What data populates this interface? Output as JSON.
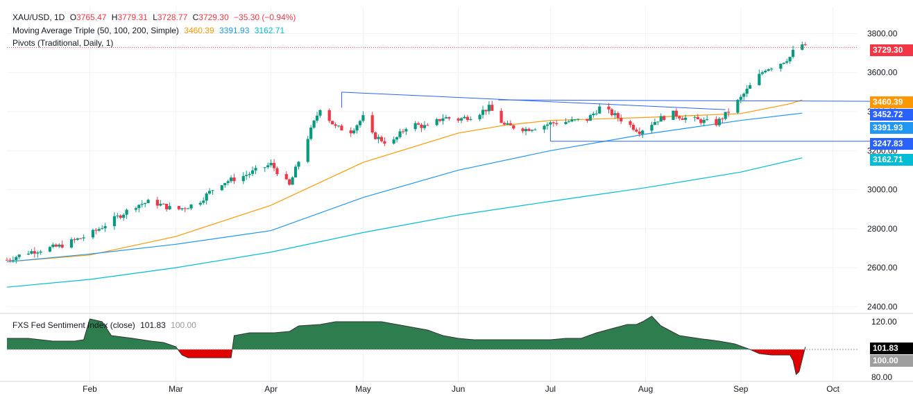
{
  "header": {
    "symbol": "XAU/USD, 1D",
    "open_label": "O",
    "open": "3765.47",
    "high_label": "H",
    "high": "3779.31",
    "low_label": "L",
    "low": "3728.77",
    "close_label": "C",
    "close": "3729.30",
    "change": "−35.30 (−0.94%)",
    "ma_label": "Moving Average Triple (50, 100, 200, Simple)",
    "ma50": "3460.39",
    "ma100": "3391.93",
    "ma200": "3162.71",
    "pivots_label": "Pivots (Traditional, Daily, 1)",
    "indicator_label": "FXS Fed Sentiment Index (close)",
    "indicator_value": "101.83",
    "indicator_baseline": "100.00"
  },
  "price_tags": {
    "last": "3729.30",
    "ma50": "3460.39",
    "pivot": "3452.72",
    "ma100": "3391.93",
    "pivot_low": "3247.83",
    "ma200": "3162.71"
  },
  "indicator_tags": {
    "value": "101.83",
    "baseline": "100.00"
  },
  "colors": {
    "up": "#089981",
    "down": "#f23645",
    "ma50": "#ff9800",
    "ma100": "#2196f3",
    "ma200": "#00bcd4",
    "trend": "#2962ff",
    "sentiment_pos": "#2e7d4f",
    "sentiment_neg": "#e00000"
  },
  "chart_data": {
    "type": "candlestick",
    "y_axis": {
      "ticks": [
        2400,
        2600,
        2800,
        3000,
        3200,
        3400,
        3600,
        3800
      ],
      "range": [
        2380,
        3830
      ]
    },
    "x_axis": {
      "labels": [
        "Feb",
        "Mar",
        "Apr",
        "May",
        "Jun",
        "Jul",
        "Aug",
        "Sep",
        "Oct"
      ],
      "label_days": [
        20,
        48,
        79,
        109,
        140,
        170,
        201,
        232,
        262
      ],
      "day_range": [
        -7,
        270
      ]
    },
    "series": [
      {
        "name": "MA50",
        "type": "line",
        "points": [
          [
            -7,
            2630
          ],
          [
            20,
            2665
          ],
          [
            48,
            2760
          ],
          [
            79,
            2920
          ],
          [
            109,
            3140
          ],
          [
            140,
            3290
          ],
          [
            155,
            3330
          ],
          [
            170,
            3355
          ],
          [
            201,
            3370
          ],
          [
            232,
            3390
          ],
          [
            248,
            3440
          ],
          [
            252,
            3460
          ]
        ]
      },
      {
        "name": "MA100",
        "type": "line",
        "points": [
          [
            -7,
            2630
          ],
          [
            20,
            2670
          ],
          [
            48,
            2720
          ],
          [
            79,
            2790
          ],
          [
            109,
            2960
          ],
          [
            140,
            3100
          ],
          [
            170,
            3200
          ],
          [
            201,
            3285
          ],
          [
            232,
            3355
          ],
          [
            252,
            3392
          ]
        ]
      },
      {
        "name": "MA200",
        "type": "line",
        "points": [
          [
            -7,
            2500
          ],
          [
            20,
            2540
          ],
          [
            48,
            2600
          ],
          [
            79,
            2680
          ],
          [
            109,
            2780
          ],
          [
            140,
            2870
          ],
          [
            170,
            2940
          ],
          [
            201,
            3010
          ],
          [
            232,
            3090
          ],
          [
            252,
            3163
          ]
        ]
      }
    ],
    "anchors": [
      [
        -7,
        2640
      ],
      [
        0,
        2680
      ],
      [
        10,
        2710
      ],
      [
        20,
        2770
      ],
      [
        28,
        2850
      ],
      [
        35,
        2920
      ],
      [
        40,
        2940
      ],
      [
        48,
        2895
      ],
      [
        55,
        2930
      ],
      [
        62,
        3030
      ],
      [
        70,
        3070
      ],
      [
        79,
        3130
      ],
      [
        85,
        3020
      ],
      [
        90,
        3230
      ],
      [
        95,
        3420
      ],
      [
        100,
        3320
      ],
      [
        105,
        3300
      ],
      [
        109,
        3370
      ],
      [
        112,
        3280
      ],
      [
        118,
        3230
      ],
      [
        124,
        3340
      ],
      [
        130,
        3320
      ],
      [
        135,
        3370
      ],
      [
        140,
        3360
      ],
      [
        145,
        3380
      ],
      [
        150,
        3420
      ],
      [
        155,
        3330
      ],
      [
        162,
        3310
      ],
      [
        168,
        3330
      ],
      [
        170,
        3340
      ],
      [
        176,
        3350
      ],
      [
        182,
        3360
      ],
      [
        186,
        3420
      ],
      [
        190,
        3390
      ],
      [
        195,
        3340
      ],
      [
        199,
        3300
      ],
      [
        205,
        3360
      ],
      [
        210,
        3390
      ],
      [
        213,
        3370
      ],
      [
        220,
        3350
      ],
      [
        224,
        3340
      ],
      [
        228,
        3400
      ],
      [
        232,
        3470
      ],
      [
        236,
        3550
      ],
      [
        240,
        3620
      ],
      [
        244,
        3640
      ],
      [
        248,
        3680
      ],
      [
        251,
        3760
      ],
      [
        253,
        3729
      ]
    ],
    "trendlines": [
      {
        "from": [
          102,
          3500
        ],
        "to": [
          227,
          3410
        ]
      },
      {
        "from": [
          153,
          3460
        ],
        "to": [
          275,
          3453
        ]
      },
      {
        "from": [
          170,
          3248
        ],
        "to": [
          275,
          3248
        ]
      }
    ],
    "indicator": {
      "name": "FXS Fed Sentiment Index (close)",
      "baseline": 100,
      "y_axis": {
        "ticks": [
          80,
          100,
          120
        ],
        "range": [
          78,
          123
        ]
      },
      "points": [
        [
          -7,
          108
        ],
        [
          0,
          108
        ],
        [
          8,
          106
        ],
        [
          15,
          106
        ],
        [
          18,
          107
        ],
        [
          20,
          122
        ],
        [
          24,
          120
        ],
        [
          27,
          110
        ],
        [
          34,
          108
        ],
        [
          40,
          106
        ],
        [
          44,
          105
        ],
        [
          48,
          102
        ],
        [
          50,
          96
        ],
        [
          52,
          94
        ],
        [
          57,
          94
        ],
        [
          62,
          94
        ],
        [
          66,
          94
        ],
        [
          67,
          110
        ],
        [
          72,
          112
        ],
        [
          80,
          112
        ],
        [
          85,
          113
        ],
        [
          88,
          117
        ],
        [
          95,
          118
        ],
        [
          100,
          120
        ],
        [
          108,
          120
        ],
        [
          115,
          120
        ],
        [
          120,
          118
        ],
        [
          125,
          116
        ],
        [
          130,
          114
        ],
        [
          135,
          110
        ],
        [
          140,
          108
        ],
        [
          145,
          107
        ],
        [
          150,
          107
        ],
        [
          160,
          107
        ],
        [
          170,
          107
        ],
        [
          175,
          108
        ],
        [
          180,
          108
        ],
        [
          185,
          112
        ],
        [
          190,
          115
        ],
        [
          195,
          118
        ],
        [
          198,
          118
        ],
        [
          200,
          120
        ],
        [
          203,
          124
        ],
        [
          206,
          117
        ],
        [
          212,
          110
        ],
        [
          218,
          108
        ],
        [
          225,
          106
        ],
        [
          230,
          104
        ],
        [
          235,
          100
        ],
        [
          238,
          97
        ],
        [
          242,
          96
        ],
        [
          245,
          96
        ],
        [
          248,
          96
        ],
        [
          249,
          92
        ],
        [
          250,
          82
        ],
        [
          251,
          84
        ],
        [
          253,
          101.83
        ]
      ]
    }
  }
}
